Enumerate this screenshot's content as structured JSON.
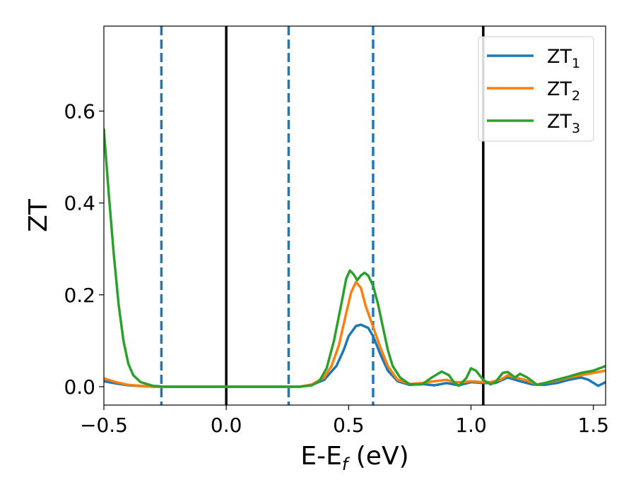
{
  "chart_data": {
    "type": "line",
    "xlabel": "E-E",
    "xlabel_sub": "f",
    "xlabel_unit": "(eV)",
    "ylabel": "ZT",
    "xlim": [
      -0.5,
      1.55
    ],
    "ylim": [
      -0.04,
      0.785
    ],
    "xticks": [
      -0.5,
      0.0,
      0.5,
      1.0,
      1.5
    ],
    "xtick_labels": [
      "−0.5",
      "0.0",
      "0.5",
      "1.0",
      "1.5"
    ],
    "yticks": [
      0.0,
      0.2,
      0.4,
      0.6
    ],
    "ytick_labels": [
      "0.0",
      "0.2",
      "0.4",
      "0.6"
    ],
    "grid": false,
    "legend_position": "top-right",
    "vertical_lines": [
      {
        "x": -0.265,
        "style": "dashed",
        "color": "#1f77b4"
      },
      {
        "x": 0.0,
        "style": "solid",
        "color": "#000000"
      },
      {
        "x": 0.255,
        "style": "dashed",
        "color": "#1f77b4"
      },
      {
        "x": 0.6,
        "style": "dashed",
        "color": "#1f77b4"
      },
      {
        "x": 1.05,
        "style": "solid",
        "color": "#000000"
      }
    ],
    "series": [
      {
        "name": "ZT",
        "subscript": "1",
        "color": "#1f77b4",
        "points": [
          [
            -0.5,
            0.012
          ],
          [
            -0.45,
            0.007
          ],
          [
            -0.4,
            0.003
          ],
          [
            -0.3,
            0.0
          ],
          [
            0.0,
            0.0
          ],
          [
            0.3,
            0.0
          ],
          [
            0.35,
            0.004
          ],
          [
            0.4,
            0.015
          ],
          [
            0.45,
            0.045
          ],
          [
            0.48,
            0.08
          ],
          [
            0.5,
            0.11
          ],
          [
            0.53,
            0.132
          ],
          [
            0.55,
            0.135
          ],
          [
            0.58,
            0.128
          ],
          [
            0.6,
            0.11
          ],
          [
            0.63,
            0.07
          ],
          [
            0.66,
            0.035
          ],
          [
            0.7,
            0.012
          ],
          [
            0.75,
            0.004
          ],
          [
            0.8,
            0.006
          ],
          [
            0.85,
            0.003
          ],
          [
            0.9,
            0.008
          ],
          [
            0.95,
            0.003
          ],
          [
            1.0,
            0.01
          ],
          [
            1.05,
            0.008
          ],
          [
            1.1,
            0.008
          ],
          [
            1.15,
            0.02
          ],
          [
            1.2,
            0.012
          ],
          [
            1.25,
            0.005
          ],
          [
            1.3,
            0.004
          ],
          [
            1.35,
            0.008
          ],
          [
            1.4,
            0.015
          ],
          [
            1.45,
            0.02
          ],
          [
            1.48,
            0.015
          ],
          [
            1.52,
            0.002
          ],
          [
            1.55,
            0.01
          ]
        ]
      },
      {
        "name": "ZT",
        "subscript": "2",
        "color": "#ff7f0e",
        "points": [
          [
            -0.5,
            0.018
          ],
          [
            -0.45,
            0.01
          ],
          [
            -0.4,
            0.004
          ],
          [
            -0.3,
            0.0
          ],
          [
            0.0,
            0.0
          ],
          [
            0.3,
            0.0
          ],
          [
            0.35,
            0.005
          ],
          [
            0.4,
            0.02
          ],
          [
            0.43,
            0.045
          ],
          [
            0.46,
            0.09
          ],
          [
            0.49,
            0.16
          ],
          [
            0.51,
            0.205
          ],
          [
            0.53,
            0.228
          ],
          [
            0.55,
            0.215
          ],
          [
            0.57,
            0.175
          ],
          [
            0.6,
            0.13
          ],
          [
            0.63,
            0.085
          ],
          [
            0.66,
            0.045
          ],
          [
            0.7,
            0.015
          ],
          [
            0.75,
            0.006
          ],
          [
            0.8,
            0.008
          ],
          [
            0.85,
            0.012
          ],
          [
            0.9,
            0.015
          ],
          [
            0.93,
            0.01
          ],
          [
            0.97,
            0.01
          ],
          [
            1.0,
            0.012
          ],
          [
            1.05,
            0.01
          ],
          [
            1.08,
            0.01
          ],
          [
            1.12,
            0.015
          ],
          [
            1.15,
            0.025
          ],
          [
            1.18,
            0.02
          ],
          [
            1.22,
            0.015
          ],
          [
            1.27,
            0.005
          ],
          [
            1.3,
            0.008
          ],
          [
            1.35,
            0.013
          ],
          [
            1.4,
            0.02
          ],
          [
            1.45,
            0.025
          ],
          [
            1.5,
            0.03
          ],
          [
            1.55,
            0.035
          ]
        ]
      },
      {
        "name": "ZT",
        "subscript": "3",
        "color": "#2ca02c",
        "points": [
          [
            -0.5,
            0.56
          ],
          [
            -0.48,
            0.42
          ],
          [
            -0.46,
            0.29
          ],
          [
            -0.44,
            0.18
          ],
          [
            -0.42,
            0.1
          ],
          [
            -0.4,
            0.05
          ],
          [
            -0.38,
            0.025
          ],
          [
            -0.35,
            0.01
          ],
          [
            -0.3,
            0.002
          ],
          [
            -0.25,
            0.0
          ],
          [
            0.0,
            0.0
          ],
          [
            0.3,
            0.0
          ],
          [
            0.35,
            0.003
          ],
          [
            0.38,
            0.012
          ],
          [
            0.41,
            0.04
          ],
          [
            0.44,
            0.1
          ],
          [
            0.47,
            0.18
          ],
          [
            0.49,
            0.235
          ],
          [
            0.505,
            0.253
          ],
          [
            0.52,
            0.245
          ],
          [
            0.535,
            0.232
          ],
          [
            0.55,
            0.242
          ],
          [
            0.565,
            0.248
          ],
          [
            0.58,
            0.242
          ],
          [
            0.6,
            0.22
          ],
          [
            0.62,
            0.18
          ],
          [
            0.64,
            0.13
          ],
          [
            0.66,
            0.08
          ],
          [
            0.68,
            0.045
          ],
          [
            0.71,
            0.02
          ],
          [
            0.75,
            0.005
          ],
          [
            0.8,
            0.005
          ],
          [
            0.84,
            0.02
          ],
          [
            0.88,
            0.033
          ],
          [
            0.91,
            0.025
          ],
          [
            0.93,
            0.01
          ],
          [
            0.95,
            0.002
          ],
          [
            0.98,
            0.018
          ],
          [
            1.0,
            0.04
          ],
          [
            1.02,
            0.035
          ],
          [
            1.05,
            0.015
          ],
          [
            1.08,
            0.005
          ],
          [
            1.1,
            0.01
          ],
          [
            1.13,
            0.03
          ],
          [
            1.15,
            0.032
          ],
          [
            1.18,
            0.02
          ],
          [
            1.2,
            0.028
          ],
          [
            1.23,
            0.02
          ],
          [
            1.27,
            0.004
          ],
          [
            1.3,
            0.008
          ],
          [
            1.35,
            0.015
          ],
          [
            1.4,
            0.022
          ],
          [
            1.45,
            0.03
          ],
          [
            1.5,
            0.035
          ],
          [
            1.55,
            0.045
          ]
        ]
      }
    ]
  }
}
